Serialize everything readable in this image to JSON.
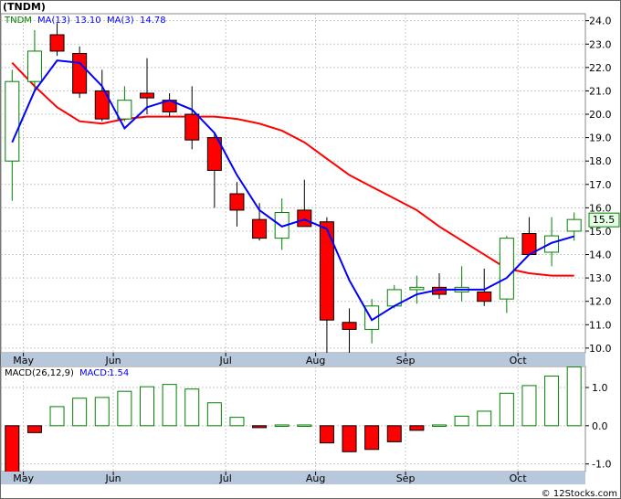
{
  "title": "(TNDM)",
  "watermark": "© 12Stocks.com",
  "colors": {
    "up_candle_border": "#008000",
    "down_candle_fill": "#ff0000",
    "ma13": "#ff0000",
    "ma3": "#0000ff",
    "legend_text": "#0000ff",
    "ticker_text": "#008000",
    "grid": "#c8c8c8",
    "axis_band": "#b7c8dc",
    "last_price_badge": "#e6ffe6"
  },
  "chart_data": [
    {
      "type": "candlestick",
      "legend": {
        "ticker": "TNDM",
        "ma13_label": "MA(13)",
        "ma13_value": "13.10",
        "ma3_label": "MA(3)",
        "ma3_value": "14.78"
      },
      "x_labels": [
        "May",
        "Jun",
        "Jul",
        "Aug",
        "Sep",
        "Oct"
      ],
      "x_label_weeks": [
        1,
        5,
        10,
        14,
        18,
        23
      ],
      "y_ticks": [
        "10.0",
        "11.0",
        "12.0",
        "13.0",
        "14.0",
        "15.0",
        "16.0",
        "17.0",
        "18.0",
        "19.0",
        "20.0",
        "21.0",
        "22.0",
        "23.0",
        "24.0"
      ],
      "ylim": [
        9.8,
        24.3
      ],
      "last_price": "15.5",
      "candles": [
        {
          "o": 18.0,
          "h": 21.9,
          "l": 16.3,
          "c": 21.4
        },
        {
          "o": 21.4,
          "h": 23.6,
          "l": 21.0,
          "c": 22.7
        },
        {
          "o": 23.4,
          "h": 23.9,
          "l": 22.5,
          "c": 22.7
        },
        {
          "o": 22.6,
          "h": 22.9,
          "l": 20.7,
          "c": 20.9
        },
        {
          "o": 21.0,
          "h": 21.9,
          "l": 19.7,
          "c": 19.8
        },
        {
          "o": 19.8,
          "h": 21.2,
          "l": 19.7,
          "c": 20.6
        },
        {
          "o": 20.9,
          "h": 22.4,
          "l": 20.0,
          "c": 20.7
        },
        {
          "o": 20.6,
          "h": 20.9,
          "l": 19.9,
          "c": 20.1
        },
        {
          "o": 20.0,
          "h": 21.2,
          "l": 18.5,
          "c": 18.9
        },
        {
          "o": 19.0,
          "h": 19.2,
          "l": 16.0,
          "c": 17.6
        },
        {
          "o": 16.6,
          "h": 17.1,
          "l": 15.2,
          "c": 15.9
        },
        {
          "o": 15.5,
          "h": 16.2,
          "l": 14.6,
          "c": 14.7
        },
        {
          "o": 14.7,
          "h": 16.4,
          "l": 14.2,
          "c": 15.8
        },
        {
          "o": 15.9,
          "h": 17.2,
          "l": 15.2,
          "c": 15.2
        },
        {
          "o": 15.4,
          "h": 15.6,
          "l": 9.2,
          "c": 11.2
        },
        {
          "o": 11.1,
          "h": 11.7,
          "l": 9.8,
          "c": 10.8
        },
        {
          "o": 10.8,
          "h": 12.1,
          "l": 10.2,
          "c": 11.8
        },
        {
          "o": 11.8,
          "h": 12.7,
          "l": 11.7,
          "c": 12.5
        },
        {
          "o": 12.5,
          "h": 13.1,
          "l": 11.9,
          "c": 12.6
        },
        {
          "o": 12.6,
          "h": 13.2,
          "l": 12.1,
          "c": 12.3
        },
        {
          "o": 12.4,
          "h": 13.5,
          "l": 12.0,
          "c": 12.6
        },
        {
          "o": 12.4,
          "h": 13.4,
          "l": 11.8,
          "c": 12.0
        },
        {
          "o": 12.1,
          "h": 14.8,
          "l": 11.5,
          "c": 14.7
        },
        {
          "o": 14.9,
          "h": 15.6,
          "l": 14.0,
          "c": 14.0
        },
        {
          "o": 14.1,
          "h": 15.6,
          "l": 13.5,
          "c": 14.8
        },
        {
          "o": 15.0,
          "h": 15.8,
          "l": 14.6,
          "c": 15.5
        }
      ],
      "ma13_values": [
        22.2,
        21.2,
        20.3,
        19.7,
        19.6,
        19.8,
        19.9,
        19.9,
        19.9,
        19.9,
        19.8,
        19.6,
        19.3,
        18.8,
        18.1,
        17.4,
        16.9,
        16.4,
        15.9,
        15.2,
        14.6,
        14.0,
        13.4,
        13.2,
        13.1,
        13.1
      ],
      "ma3_values": [
        18.8,
        21.0,
        22.3,
        22.2,
        21.2,
        19.4,
        20.3,
        20.6,
        20.2,
        19.2,
        17.4,
        15.9,
        15.2,
        15.5,
        15.1,
        12.9,
        11.2,
        11.8,
        12.3,
        12.5,
        12.5,
        12.5,
        13.0,
        14.0,
        14.5,
        14.78
      ]
    },
    {
      "type": "bar",
      "legend": {
        "label": "MACD(26,12,9)",
        "value_label": "MACD:",
        "value": "1.54"
      },
      "x_labels": [
        "May",
        "Jun",
        "Jul",
        "Aug",
        "Sep",
        "Oct"
      ],
      "y_ticks": [
        "-1.0",
        "0.0",
        "1.0"
      ],
      "ylim": [
        -1.2,
        1.55
      ],
      "values": [
        -1.25,
        -0.18,
        0.5,
        0.72,
        0.74,
        0.9,
        1.02,
        1.08,
        0.96,
        0.6,
        0.22,
        -0.05,
        0.02,
        0.02,
        -0.45,
        -0.68,
        -0.62,
        -0.42,
        -0.12,
        0.02,
        0.25,
        0.38,
        0.85,
        1.05,
        1.3,
        1.54
      ]
    }
  ]
}
